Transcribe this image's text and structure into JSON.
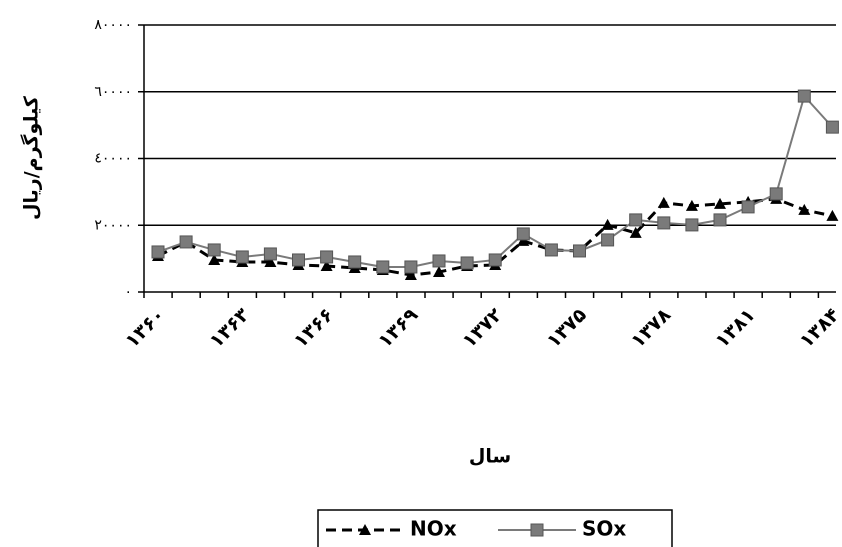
{
  "chart_data": {
    "type": "line",
    "y_axis_label": "کیلوگرم/ریال",
    "x_axis_label": "سال",
    "categories": [
      "۱۳۶۰",
      null,
      null,
      "۱۳۶۳",
      null,
      null,
      "۱۳۶۶",
      null,
      null,
      "۱۳۶۹",
      null,
      null,
      "۱۳۷۲",
      null,
      null,
      "۱۳۷۵",
      null,
      null,
      "۱۳۷۸",
      null,
      null,
      "۱۳۸۱",
      null,
      null,
      "۱۳۸۴"
    ],
    "series": [
      {
        "name": "NOx",
        "color": "#000000",
        "dashed": true,
        "marker": "triangle",
        "values": [
          10800,
          15000,
          9600,
          9000,
          9000,
          8100,
          7800,
          7200,
          6600,
          5100,
          6000,
          7800,
          8100,
          15300,
          12600,
          12300,
          20100,
          17700,
          26700,
          25800,
          26400,
          27000,
          27900,
          24600,
          22800
        ]
      },
      {
        "name": "SOx",
        "color": "#7a7a7a",
        "dashed": false,
        "marker": "square",
        "values": [
          12000,
          15000,
          12600,
          10500,
          11400,
          9600,
          10500,
          9000,
          7500,
          7500,
          9300,
          8700,
          9600,
          17400,
          12600,
          12300,
          15600,
          21600,
          20700,
          20100,
          21600,
          25500,
          29400,
          58700,
          49400
        ]
      }
    ],
    "ylim": [
      0,
      80000
    ],
    "yticks": [
      {
        "value": 0,
        "label": "٠"
      },
      {
        "value": 20000,
        "label": "٢٠٠٠٠"
      },
      {
        "value": 40000,
        "label": "٤٠٠٠٠"
      },
      {
        "value": 60000,
        "label": "٦٠٠٠٠"
      },
      {
        "value": 80000,
        "label": "٨٠٠٠٠"
      }
    ],
    "grid": true
  }
}
